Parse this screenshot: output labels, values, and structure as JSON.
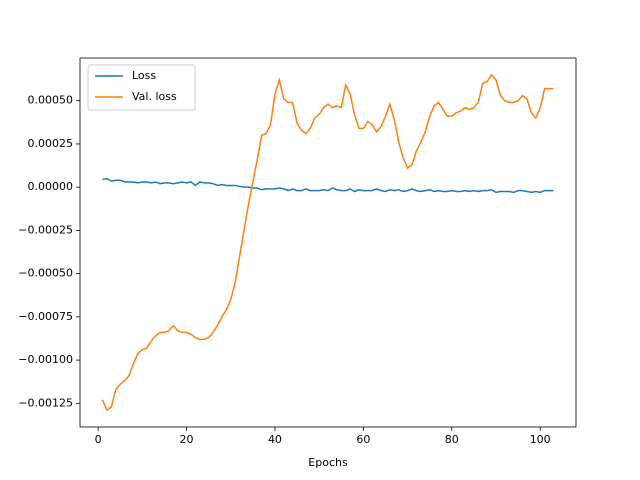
{
  "chart_data": {
    "type": "line",
    "x_label": "Epochs",
    "x": [
      1,
      2,
      3,
      4,
      5,
      6,
      7,
      8,
      9,
      10,
      11,
      12,
      13,
      14,
      15,
      16,
      17,
      18,
      19,
      20,
      21,
      22,
      23,
      24,
      25,
      26,
      27,
      28,
      29,
      30,
      31,
      32,
      33,
      34,
      35,
      36,
      37,
      38,
      39,
      40,
      41,
      42,
      43,
      44,
      45,
      46,
      47,
      48,
      49,
      50,
      51,
      52,
      53,
      54,
      55,
      56,
      57,
      58,
      59,
      60,
      61,
      62,
      63,
      64,
      65,
      66,
      67,
      68,
      69,
      70,
      71,
      72,
      73,
      74,
      75,
      76,
      77,
      78,
      79,
      80,
      81,
      82,
      83,
      84,
      85,
      86,
      87,
      88,
      89,
      90,
      91,
      92,
      93,
      94,
      95,
      96,
      97,
      98,
      99,
      100,
      101,
      102,
      103
    ],
    "series": [
      {
        "name": "Loss",
        "color": "#1f77b4",
        "values": [
          4.5e-05,
          5e-05,
          3.5e-05,
          4e-05,
          4e-05,
          3e-05,
          3e-05,
          3e-05,
          2.5e-05,
          3e-05,
          3e-05,
          2.5e-05,
          3e-05,
          2e-05,
          2.5e-05,
          2.5e-05,
          2e-05,
          2.5e-05,
          3e-05,
          2.5e-05,
          3e-05,
          1e-05,
          3e-05,
          2.5e-05,
          2.5e-05,
          2e-05,
          1e-05,
          1.5e-05,
          1e-05,
          1e-05,
          1e-05,
          5e-06,
          0,
          0,
          -5e-06,
          -5e-06,
          -1.5e-05,
          -1e-05,
          -1e-05,
          -1e-05,
          -5e-06,
          -1e-05,
          -2e-05,
          -1e-05,
          -2e-05,
          -2e-05,
          -1e-05,
          -2e-05,
          -2e-05,
          -2e-05,
          -1.5e-05,
          -2e-05,
          -5e-06,
          -1.5e-05,
          -2e-05,
          -2e-05,
          -1e-05,
          -2.5e-05,
          -1.5e-05,
          -2e-05,
          -2e-05,
          -2e-05,
          -1e-05,
          -2e-05,
          -2.5e-05,
          -1.5e-05,
          -2e-05,
          -1.5e-05,
          -2.5e-05,
          -2e-05,
          -1e-05,
          -2e-05,
          -2.5e-05,
          -2e-05,
          -1.5e-05,
          -2.5e-05,
          -2e-05,
          -2.5e-05,
          -2.5e-05,
          -2e-05,
          -2.5e-05,
          -2.5e-05,
          -2e-05,
          -2.5e-05,
          -2e-05,
          -2.5e-05,
          -2e-05,
          -2e-05,
          -1.5e-05,
          -3e-05,
          -2.5e-05,
          -2.5e-05,
          -2.5e-05,
          -3e-05,
          -2e-05,
          -2e-05,
          -2.5e-05,
          -3e-05,
          -2.5e-05,
          -3e-05,
          -2e-05,
          -2e-05,
          -2e-05
        ]
      },
      {
        "name": "Val. loss",
        "color": "#ff7f0e",
        "values": [
          -0.00123,
          -0.00129,
          -0.00127,
          -0.00117,
          -0.00114,
          -0.00112,
          -0.00109,
          -0.00102,
          -0.00096,
          -0.00094,
          -0.00093,
          -0.00089,
          -0.00086,
          -0.00084,
          -0.00084,
          -0.00083,
          -0.0008,
          -0.00083,
          -0.00084,
          -0.00084,
          -0.00085,
          -0.00087,
          -0.00088,
          -0.00088,
          -0.00087,
          -0.00084,
          -0.0008,
          -0.00075,
          -0.00071,
          -0.00065,
          -0.00055,
          -0.0004,
          -0.00025,
          -0.0001,
          3e-05,
          0.00016,
          0.0003,
          0.00031,
          0.00036,
          0.00054,
          0.00062,
          0.00051,
          0.00049,
          0.00049,
          0.00037,
          0.00033,
          0.00031,
          0.00034,
          0.0004,
          0.00042,
          0.00046,
          0.00048,
          0.00046,
          0.00047,
          0.00046,
          0.00059,
          0.00054,
          0.00042,
          0.00034,
          0.00034,
          0.00038,
          0.00036,
          0.00032,
          0.00035,
          0.00041,
          0.00048,
          0.00039,
          0.00026,
          0.00017,
          0.00011,
          0.00013,
          0.00021,
          0.00026,
          0.00032,
          0.00041,
          0.00047,
          0.00049,
          0.00045,
          0.00041,
          0.00041,
          0.00043,
          0.00044,
          0.00046,
          0.00045,
          0.00046,
          0.00049,
          0.0006,
          0.00061,
          0.00065,
          0.00062,
          0.00053,
          0.0005,
          0.00049,
          0.00049,
          0.0005,
          0.00053,
          0.00051,
          0.00043,
          0.0004,
          0.00046,
          0.00057,
          0.00057,
          0.00057
        ]
      }
    ],
    "xlim": [
      -4.1,
      108.1
    ],
    "ylim": [
      -0.001387,
      0.000747
    ],
    "xticks": [
      0,
      20,
      40,
      60,
      80,
      100
    ],
    "yticks": [
      {
        "value": -0.00125,
        "label": "−0.00125"
      },
      {
        "value": -0.001,
        "label": "−0.00100"
      },
      {
        "value": -0.00075,
        "label": "−0.00075"
      },
      {
        "value": -0.0005,
        "label": "−0.00050"
      },
      {
        "value": -0.00025,
        "label": "−0.00025"
      },
      {
        "value": 0,
        "label": "0.00000"
      },
      {
        "value": 0.00025,
        "label": "0.00025"
      },
      {
        "value": 0.0005,
        "label": "0.00050"
      }
    ],
    "legend": "upper left"
  }
}
